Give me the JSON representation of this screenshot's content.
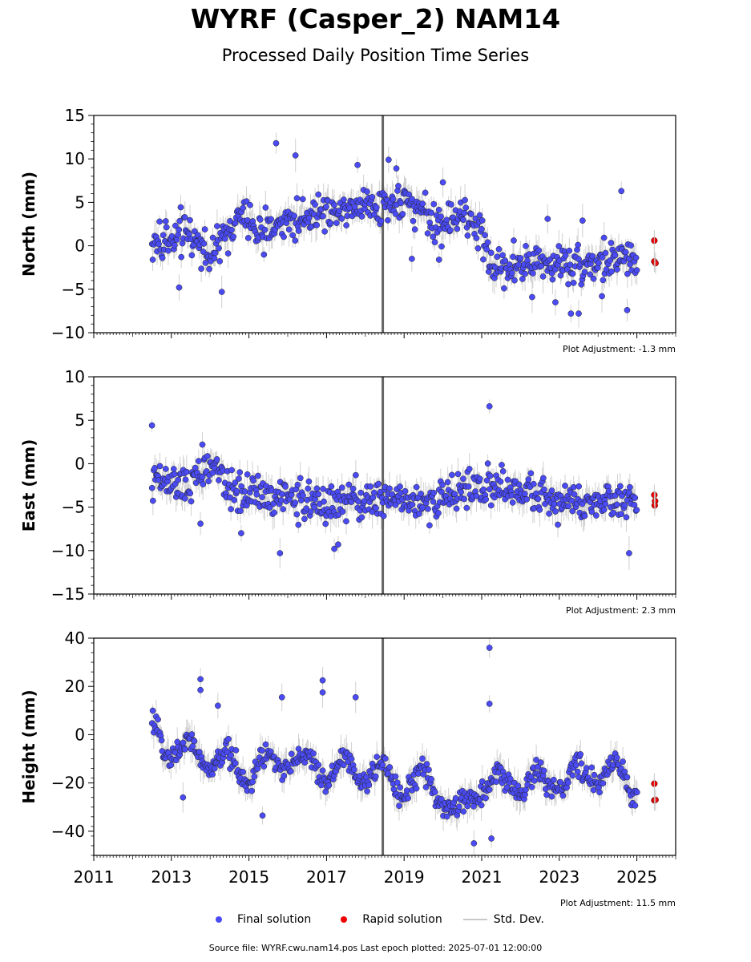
{
  "header": {
    "title": "WYRF (Casper_2) NAM14",
    "subtitle": "Processed Daily Position Time Series"
  },
  "legend": {
    "final_label": "Final solution",
    "rapid_label": "Rapid solution",
    "std_label": "Std. Dev."
  },
  "footer": {
    "source": "Source file: WYRF.cwu.nam14.pos  Last epoch plotted: 2025-07-01 12:00:00"
  },
  "colors": {
    "final": "#4b4bf5",
    "final_edge": "#202020",
    "rapid": "#ee0000",
    "stddev": "#c8c8c8",
    "outage_band": "#555555"
  },
  "chart_data": [
    {
      "type": "scatter",
      "ylabel": "North (mm)",
      "ylim": [
        -10,
        15
      ],
      "yticks": [
        -10,
        -5,
        0,
        5,
        10,
        15
      ],
      "xlim": [
        2011,
        2026
      ],
      "adjustment": "Plot Adjustment: -1.3 mm",
      "final_range": [
        2012.5,
        2025.0
      ],
      "vertical_band_year": 2018.45,
      "trend_knots": [
        [
          2012.5,
          0
        ],
        [
          2013.5,
          1.5
        ],
        [
          2014.0,
          -1
        ],
        [
          2014.8,
          3.5
        ],
        [
          2015.3,
          1.5
        ],
        [
          2016.0,
          3
        ],
        [
          2017.5,
          4.5
        ],
        [
          2018.5,
          5
        ],
        [
          2019.5,
          4.5
        ],
        [
          2019.8,
          2
        ],
        [
          2020.3,
          3.5
        ],
        [
          2020.8,
          2.5
        ],
        [
          2021.0,
          1
        ],
        [
          2021.3,
          -2.5
        ],
        [
          2022.0,
          -2
        ],
        [
          2023.0,
          -2
        ],
        [
          2024.0,
          -2
        ],
        [
          2025.0,
          -1.5
        ]
      ],
      "scatter_amp": 1.6,
      "outliers": [
        [
          2013.2,
          -4.8
        ],
        [
          2014.3,
          -5.3
        ],
        [
          2015.7,
          11.8
        ],
        [
          2016.2,
          10.4
        ],
        [
          2017.8,
          9.3
        ],
        [
          2018.6,
          9.9
        ],
        [
          2018.8,
          8.9
        ],
        [
          2019.2,
          -1.5
        ],
        [
          2019.9,
          -1.6
        ],
        [
          2020.0,
          7.3
        ],
        [
          2022.3,
          -5.9
        ],
        [
          2022.7,
          3.1
        ],
        [
          2022.9,
          -6.5
        ],
        [
          2023.3,
          -7.8
        ],
        [
          2023.5,
          -7.8
        ],
        [
          2023.6,
          2.9
        ],
        [
          2024.1,
          -5.8
        ],
        [
          2024.6,
          6.3
        ],
        [
          2024.75,
          -7.4
        ]
      ],
      "rapid": [
        [
          2025.45,
          0.6
        ],
        [
          2025.45,
          -1.8
        ],
        [
          2025.48,
          -2.0
        ]
      ]
    },
    {
      "type": "scatter",
      "ylabel": "East (mm)",
      "ylim": [
        -15,
        10
      ],
      "yticks": [
        -15,
        -10,
        -5,
        0,
        5,
        10
      ],
      "xlim": [
        2011,
        2026
      ],
      "adjustment": "Plot Adjustment: 2.3 mm",
      "final_range": [
        2012.5,
        2025.0
      ],
      "vertical_band_year": 2018.45,
      "trend_knots": [
        [
          2012.5,
          -2
        ],
        [
          2013.5,
          -2.5
        ],
        [
          2014.0,
          0
        ],
        [
          2014.5,
          -3
        ],
        [
          2015.5,
          -3.5
        ],
        [
          2016.5,
          -4.5
        ],
        [
          2017.5,
          -4.5
        ],
        [
          2018.5,
          -4
        ],
        [
          2019.5,
          -4.5
        ],
        [
          2020.0,
          -3.5
        ],
        [
          2020.5,
          -3.5
        ],
        [
          2021.0,
          -2.5
        ],
        [
          2021.5,
          -3
        ],
        [
          2022.5,
          -3.5
        ],
        [
          2023.5,
          -4.5
        ],
        [
          2024.5,
          -4
        ],
        [
          2025.0,
          -4
        ]
      ],
      "scatter_amp": 1.5,
      "outliers": [
        [
          2012.5,
          4.4
        ],
        [
          2013.8,
          2.2
        ],
        [
          2013.75,
          -6.9
        ],
        [
          2015.8,
          -10.3
        ],
        [
          2017.2,
          -9.8
        ],
        [
          2017.3,
          -9.3
        ],
        [
          2021.2,
          6.6
        ],
        [
          2024.8,
          -10.3
        ],
        [
          2014.8,
          -8.0
        ]
      ],
      "rapid": [
        [
          2025.45,
          -3.6
        ],
        [
          2025.47,
          -4.3
        ],
        [
          2025.46,
          -4.8
        ]
      ]
    },
    {
      "type": "scatter",
      "ylabel": "Height (mm)",
      "ylim": [
        -50,
        40
      ],
      "yticks": [
        -40,
        -20,
        0,
        20,
        40
      ],
      "xlim": [
        2011,
        2026
      ],
      "xticks": [
        2011,
        2013,
        2015,
        2017,
        2019,
        2021,
        2023,
        2025
      ],
      "adjustment": "Plot Adjustment: 11.5 mm",
      "final_range": [
        2012.5,
        2025.0
      ],
      "vertical_band_year": 2018.45,
      "trend_knots": [
        [
          2012.5,
          0
        ],
        [
          2013.0,
          -5
        ],
        [
          2014.0,
          -10
        ],
        [
          2015.0,
          -15
        ],
        [
          2016.0,
          -10
        ],
        [
          2017.0,
          -15
        ],
        [
          2018.0,
          -15
        ],
        [
          2019.0,
          -20
        ],
        [
          2019.5,
          -20
        ],
        [
          2020.0,
          -25
        ],
        [
          2020.4,
          -35
        ],
        [
          2021.0,
          -20
        ],
        [
          2022.0,
          -20
        ],
        [
          2023.0,
          -20
        ],
        [
          2024.0,
          -15
        ],
        [
          2025.0,
          -20
        ]
      ],
      "seasonal_amp": 5,
      "scatter_amp": 3.5,
      "outliers": [
        [
          2013.75,
          23
        ],
        [
          2013.75,
          18.5
        ],
        [
          2014.2,
          12
        ],
        [
          2015.85,
          15.5
        ],
        [
          2016.9,
          22.5
        ],
        [
          2016.9,
          17.5
        ],
        [
          2017.75,
          15.5
        ],
        [
          2021.2,
          36
        ],
        [
          2021.2,
          12.8
        ],
        [
          2020.8,
          -45
        ],
        [
          2021.25,
          -43
        ],
        [
          2013.3,
          -26
        ],
        [
          2015.35,
          -33.5
        ]
      ],
      "rapid": [
        [
          2025.45,
          -20.3
        ],
        [
          2025.45,
          -27.2
        ],
        [
          2025.48,
          -27.0
        ]
      ]
    }
  ]
}
